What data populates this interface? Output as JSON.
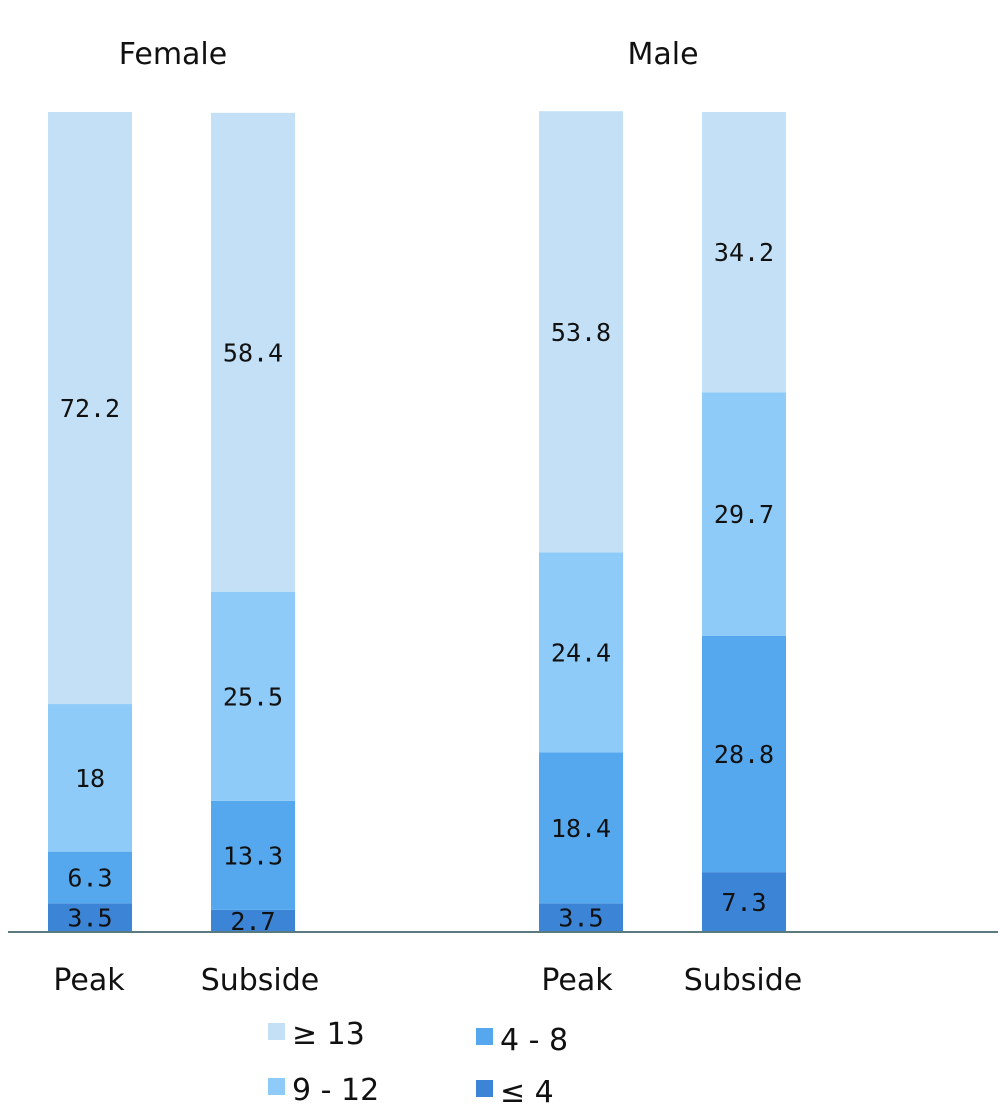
{
  "chart_data": [
    {
      "type": "bar",
      "stacked": true,
      "title": "Female",
      "categories": [
        "Peak",
        "Subside"
      ],
      "series": [
        {
          "name": "≤ 4",
          "values": [
            3.5,
            2.7
          ]
        },
        {
          "name": "4 - 8",
          "values": [
            6.3,
            13.3
          ]
        },
        {
          "name": "9 - 12",
          "values": [
            18,
            25.5
          ]
        },
        {
          "name": "≥ 13",
          "values": [
            72.2,
            58.4
          ]
        }
      ],
      "ylim": [
        0,
        100
      ]
    },
    {
      "type": "bar",
      "stacked": true,
      "title": "Male",
      "categories": [
        "Peak",
        "Subside"
      ],
      "series": [
        {
          "name": "≤ 4",
          "values": [
            3.5,
            7.3
          ]
        },
        {
          "name": "4 - 8",
          "values": [
            18.4,
            28.8
          ]
        },
        {
          "name": "9 - 12",
          "values": [
            24.4,
            29.7
          ]
        },
        {
          "name": "≥ 13",
          "values": [
            53.8,
            34.2
          ]
        }
      ],
      "ylim": [
        0,
        100
      ]
    }
  ],
  "legend": [
    {
      "label": "≥ 13",
      "color": "#c4e0f7"
    },
    {
      "label": "4 - 8",
      "color": "#55a8ee"
    },
    {
      "label": "9 - 12",
      "color": "#8ecbf8"
    },
    {
      "label": "≤ 4",
      "color": "#3b84d6"
    }
  ],
  "colors": {
    "≤ 4": "#3b84d6",
    "4 - 8": "#55a8ee",
    "9 - 12": "#8ecbf8",
    "≥ 13": "#c4e0f7",
    "axis": "#5a7a80"
  }
}
